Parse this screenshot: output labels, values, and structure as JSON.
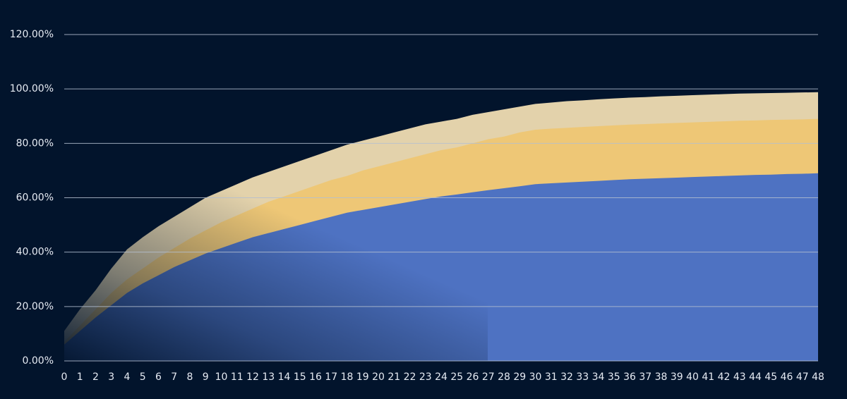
{
  "chart_data": {
    "type": "area",
    "x": [
      0,
      1,
      2,
      3,
      4,
      5,
      6,
      7,
      8,
      9,
      10,
      11,
      12,
      13,
      14,
      15,
      16,
      17,
      18,
      19,
      20,
      21,
      22,
      23,
      24,
      25,
      26,
      27,
      28,
      29,
      30,
      31,
      32,
      33,
      34,
      35,
      36,
      37,
      38,
      39,
      40,
      41,
      42,
      43,
      44,
      45,
      46,
      47,
      48
    ],
    "xlim": [
      0,
      48
    ],
    "ylim": [
      0,
      120
    ],
    "yticks": [
      {
        "value": 0,
        "label": "0.00%"
      },
      {
        "value": 20,
        "label": "20.00%"
      },
      {
        "value": 40,
        "label": "40.00%"
      },
      {
        "value": 60,
        "label": "60.00%"
      },
      {
        "value": 80,
        "label": "80.00%"
      },
      {
        "value": 100,
        "label": "100.00%"
      },
      {
        "value": 120,
        "label": "120.00%"
      }
    ],
    "grid": true,
    "series": [
      {
        "color": "#f6e3b6",
        "values": [
          11,
          19,
          26,
          34,
          41,
          45.5,
          49.5,
          53,
          56.5,
          60,
          62.5,
          65,
          67.5,
          69.5,
          71.5,
          73.5,
          75.5,
          77.5,
          79.5,
          81,
          82.5,
          84,
          85.5,
          87,
          88,
          89,
          90.5,
          91.5,
          92.5,
          93.5,
          94.5,
          95,
          95.5,
          95.8,
          96.2,
          96.5,
          96.8,
          97,
          97.3,
          97.5,
          97.7,
          97.9,
          98.1,
          98.3,
          98.4,
          98.5,
          98.6,
          98.7,
          98.8
        ]
      },
      {
        "color": "#f0c46a",
        "values": [
          7,
          13,
          19,
          25,
          30,
          34,
          38,
          41.5,
          45,
          48,
          51,
          53.5,
          56,
          58.5,
          60.5,
          62.5,
          64.5,
          66.5,
          68,
          70,
          71.5,
          73,
          74.5,
          76,
          77.5,
          78.5,
          80,
          81.5,
          82.5,
          84,
          85,
          85.4,
          85.7,
          86,
          86.3,
          86.6,
          86.9,
          87.1,
          87.3,
          87.5,
          87.7,
          87.9,
          88.1,
          88.3,
          88.4,
          88.6,
          88.7,
          88.8,
          89
        ]
      },
      {
        "color": "#4e72c2",
        "values": [
          6,
          11,
          16,
          20.5,
          25,
          28.5,
          31.5,
          34.5,
          37,
          39.5,
          41.5,
          43.5,
          45.5,
          47,
          48.5,
          50,
          51.5,
          53,
          54.5,
          55.5,
          56.5,
          57.5,
          58.5,
          59.5,
          60.5,
          61.2,
          62,
          62.8,
          63.5,
          64.2,
          65,
          65.3,
          65.6,
          65.9,
          66.2,
          66.5,
          66.8,
          67,
          67.2,
          67.4,
          67.6,
          67.8,
          68,
          68.2,
          68.4,
          68.5,
          68.7,
          68.8,
          69
        ]
      }
    ]
  }
}
